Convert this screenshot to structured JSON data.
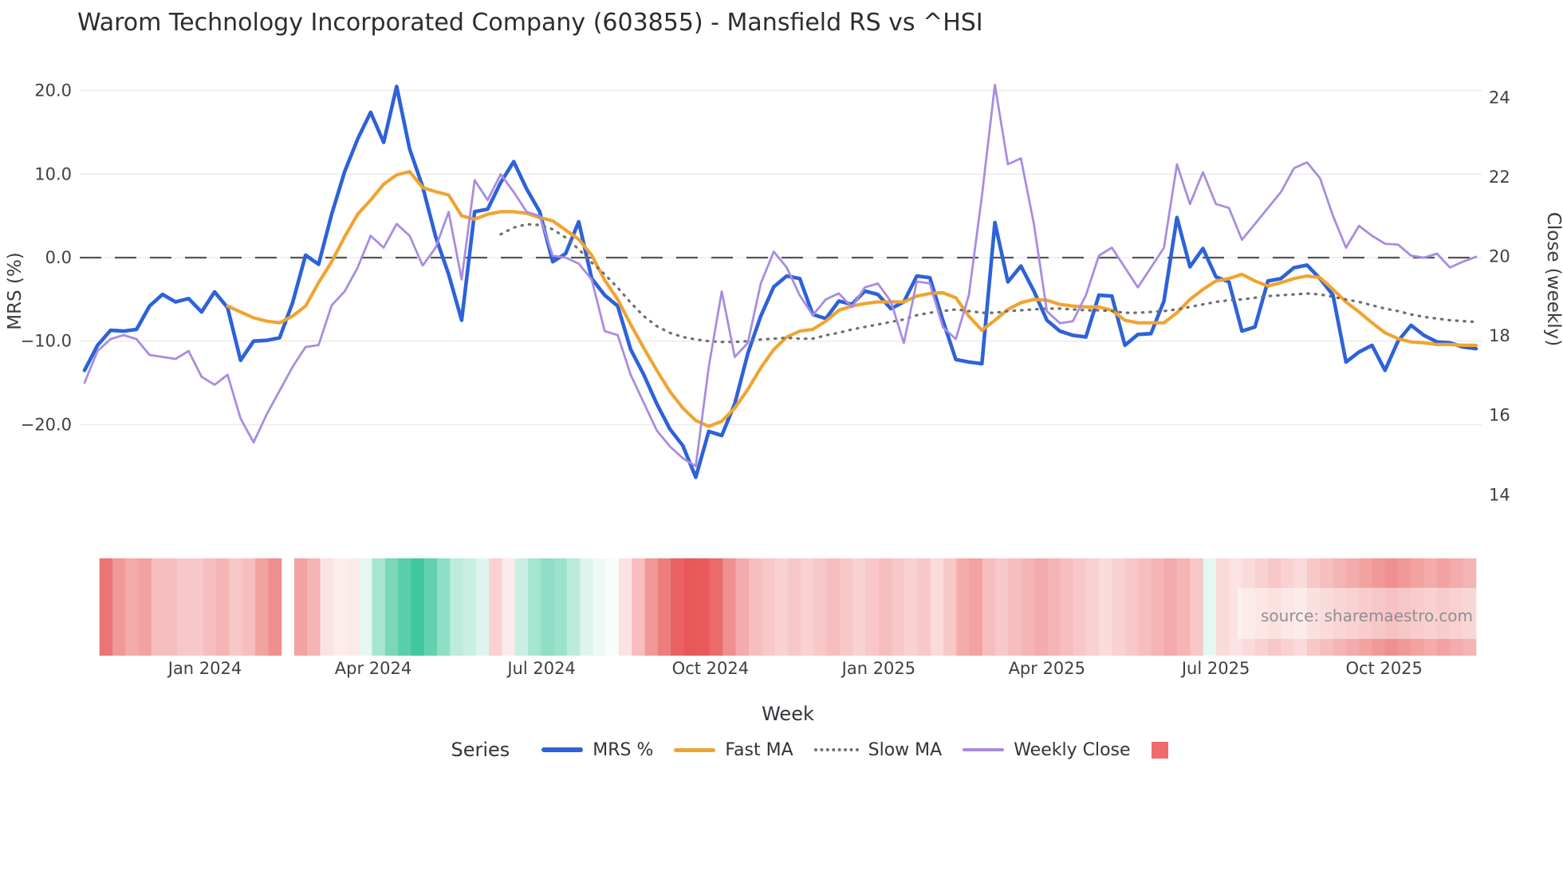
{
  "title": "Warom Technology Incorporated Company (603855) - Mansfield RS vs ^HSI",
  "source_note": "source: sharemaestro.com",
  "axes": {
    "left": {
      "title": "MRS (%)",
      "ticks": [
        20,
        10,
        0,
        -10,
        -20
      ],
      "tick_labels": [
        "20.0",
        "10.0",
        "0.0",
        "−10.0",
        "−20.0"
      ]
    },
    "right": {
      "title": "Close (weekly)",
      "ticks": [
        24,
        22,
        20,
        18,
        16,
        14
      ],
      "tick_labels": [
        "24",
        "22",
        "20",
        "18",
        "16",
        "14"
      ]
    },
    "x": {
      "title": "Week",
      "tick_labels": [
        "Jan 2024",
        "Apr 2024",
        "Jul 2024",
        "Oct 2024",
        "Jan 2025",
        "Apr 2025",
        "Jul 2025",
        "Oct 2025"
      ],
      "tick_weeks": [
        9.26,
        22.2,
        35.14,
        48.13,
        61.07,
        74.0,
        86.99,
        99.93
      ]
    }
  },
  "legend": {
    "title": "Series",
    "items": [
      {
        "label": "MRS %",
        "color": "#2d62d8",
        "style": "solid"
      },
      {
        "label": "Fast MA",
        "color": "#efa431",
        "style": "solid"
      },
      {
        "label": "Slow MA",
        "color": "#6e6e76",
        "style": "dotted"
      },
      {
        "label": "Weekly Close",
        "color": "#a98ce0",
        "style": "solid"
      },
      {
        "label": "",
        "color": "#ed6b6b",
        "style": "square"
      }
    ]
  },
  "chart_data": {
    "type": "line",
    "x_unit": "week_index",
    "n_weeks": 108,
    "zero_line": 0,
    "left_axis_range": [
      -26.5,
      21
    ],
    "right_axis_range": [
      13.8,
      24.4
    ],
    "grid": "horizontal-left-ticks",
    "legend_position": "bottom-center",
    "series": [
      {
        "name": "MRS %",
        "axis": "left",
        "color": "#2d62d8",
        "width": 4.6,
        "dash": null,
        "start_week": 0,
        "values": [
          -13.5,
          -10.5,
          -8.7,
          -8.8,
          -8.6,
          -5.8,
          -4.4,
          -5.3,
          -4.9,
          -6.5,
          -4.1,
          -6.0,
          -12.3,
          -10.0,
          -9.9,
          -9.6,
          -5.4,
          0.3,
          -0.8,
          5.2,
          10.3,
          14.2,
          17.4,
          13.8,
          20.5,
          13.0,
          8.5,
          2.5,
          -2.0,
          -7.5,
          5.5,
          5.8,
          9.0,
          11.5,
          8.2,
          5.5,
          -0.5,
          0.5,
          4.3,
          -2.5,
          -4.5,
          -5.8,
          -11.0,
          -14.0,
          -17.5,
          -20.5,
          -22.5,
          -26.3,
          -20.8,
          -21.3,
          -17.5,
          -11.5,
          -7.0,
          -3.5,
          -2.2,
          -2.5,
          -6.8,
          -7.3,
          -5.2,
          -5.6,
          -4.0,
          -4.4,
          -6.1,
          -5.3,
          -2.2,
          -2.4,
          -7.5,
          -12.2,
          -12.5,
          -12.7,
          4.2,
          -2.9,
          -1.0,
          -4.0,
          -7.5,
          -8.8,
          -9.3,
          -9.5,
          -4.5,
          -4.6,
          -10.5,
          -9.2,
          -9.1,
          -5.2,
          4.8,
          -1.1,
          1.1,
          -2.3,
          -2.9,
          -8.8,
          -8.3,
          -2.8,
          -2.5,
          -1.2,
          -0.9,
          -2.5,
          -4.5,
          -12.5,
          -11.3,
          -10.5,
          -13.5,
          -10.0,
          -8.1,
          -9.3,
          -10.1,
          -10.2,
          -10.7,
          -10.9
        ]
      },
      {
        "name": "Fast MA",
        "axis": "left",
        "color": "#efa431",
        "width": 4.2,
        "dash": null,
        "start_week": 11,
        "values": [
          -5.8,
          -6.5,
          -7.2,
          -7.6,
          -7.8,
          -7.0,
          -5.8,
          -3.0,
          -0.5,
          2.5,
          5.2,
          6.9,
          8.8,
          9.9,
          10.3,
          8.4,
          7.9,
          7.5,
          5.0,
          4.6,
          5.2,
          5.5,
          5.5,
          5.3,
          4.8,
          4.4,
          3.3,
          2.2,
          0.3,
          -2.7,
          -5.0,
          -8.0,
          -10.8,
          -13.5,
          -16.0,
          -18.0,
          -19.5,
          -20.2,
          -19.6,
          -18.0,
          -15.8,
          -13.2,
          -11.0,
          -9.5,
          -8.8,
          -8.6,
          -7.6,
          -6.3,
          -5.8,
          -5.5,
          -5.3,
          -5.3,
          -5.3,
          -4.6,
          -4.3,
          -4.2,
          -4.8,
          -7.0,
          -8.7,
          -7.5,
          -6.2,
          -5.4,
          -5.0,
          -5.1,
          -5.6,
          -5.8,
          -5.9,
          -5.9,
          -6.3,
          -7.5,
          -7.8,
          -7.8,
          -7.8,
          -6.6,
          -5.0,
          -3.8,
          -2.8,
          -2.5,
          -2.0,
          -2.8,
          -3.4,
          -3.0,
          -2.5,
          -2.2,
          -2.4,
          -3.8,
          -5.3,
          -6.5,
          -7.8,
          -9.0,
          -9.7,
          -10.1,
          -10.2,
          -10.4,
          -10.4,
          -10.5,
          -10.5
        ]
      },
      {
        "name": "Slow MA",
        "axis": "left",
        "color": "#6e6e76",
        "width": 3.2,
        "dash": "dotted",
        "start_week": 32,
        "values": [
          2.8,
          3.6,
          4.0,
          3.9,
          3.4,
          2.4,
          1.0,
          -0.6,
          -2.0,
          -3.6,
          -5.4,
          -7.0,
          -8.2,
          -9.0,
          -9.5,
          -9.8,
          -10.0,
          -10.1,
          -10.1,
          -10.0,
          -9.8,
          -9.7,
          -9.6,
          -9.7,
          -9.7,
          -9.3,
          -9.0,
          -8.6,
          -8.3,
          -8.0,
          -7.7,
          -7.4,
          -6.9,
          -6.6,
          -6.4,
          -6.2,
          -6.4,
          -6.6,
          -6.6,
          -6.4,
          -6.3,
          -6.2,
          -6.1,
          -6.1,
          -6.2,
          -6.3,
          -6.3,
          -6.4,
          -6.6,
          -6.6,
          -6.5,
          -6.4,
          -6.2,
          -5.9,
          -5.6,
          -5.3,
          -5.1,
          -5.0,
          -4.8,
          -4.6,
          -4.5,
          -4.4,
          -4.3,
          -4.4,
          -4.7,
          -5.0,
          -5.3,
          -5.7,
          -6.1,
          -6.4,
          -6.8,
          -7.1,
          -7.3,
          -7.5,
          -7.6,
          -7.7
        ]
      },
      {
        "name": "Weekly Close",
        "axis": "right",
        "color": "#a98ce0",
        "width": 2.8,
        "dash": null,
        "start_week": 0,
        "values": [
          16.8,
          17.6,
          17.9,
          18.0,
          17.9,
          17.5,
          17.45,
          17.4,
          17.6,
          16.95,
          16.75,
          17.0,
          15.9,
          15.3,
          16.0,
          16.6,
          17.2,
          17.7,
          17.75,
          18.75,
          19.1,
          19.7,
          20.5,
          20.2,
          20.8,
          20.5,
          19.75,
          20.2,
          21.1,
          19.4,
          21.9,
          21.4,
          22.05,
          21.6,
          21.1,
          21.0,
          20.0,
          19.95,
          19.8,
          19.4,
          18.1,
          18.0,
          17.0,
          16.3,
          15.6,
          15.2,
          14.9,
          14.7,
          17.2,
          19.1,
          17.45,
          17.8,
          19.3,
          20.1,
          19.7,
          19.0,
          18.5,
          18.9,
          19.05,
          18.7,
          19.2,
          19.3,
          18.85,
          17.8,
          19.35,
          19.3,
          18.2,
          17.9,
          19.0,
          21.5,
          24.3,
          22.3,
          22.45,
          20.8,
          18.6,
          18.3,
          18.35,
          19.0,
          20.0,
          20.2,
          19.7,
          19.2,
          19.7,
          20.2,
          22.3,
          21.3,
          22.1,
          21.3,
          21.2,
          20.4,
          20.8,
          21.2,
          21.6,
          22.2,
          22.35,
          21.95,
          21.0,
          20.2,
          20.75,
          20.5,
          20.3,
          20.28,
          20.0,
          19.95,
          20.05,
          19.7,
          19.85,
          19.97
        ]
      }
    ],
    "heatmap": {
      "start_week": 1,
      "cell_weeks": 1,
      "positive_color": "#21bd8b",
      "negative_color": "#e64545",
      "values": [
        -0.75,
        -0.55,
        -0.45,
        -0.5,
        -0.35,
        -0.35,
        -0.3,
        -0.3,
        -0.35,
        -0.4,
        -0.3,
        -0.35,
        -0.5,
        -0.6,
        null,
        -0.5,
        -0.4,
        -0.15,
        -0.1,
        -0.12,
        0.12,
        0.4,
        0.6,
        0.75,
        0.85,
        0.7,
        0.5,
        0.3,
        0.25,
        0.15,
        -0.25,
        -0.12,
        0.25,
        0.4,
        0.5,
        0.45,
        0.3,
        0.15,
        0.08,
        0.03,
        -0.15,
        -0.35,
        -0.55,
        -0.7,
        -0.85,
        -0.9,
        -0.88,
        -0.8,
        -0.6,
        -0.45,
        -0.35,
        -0.3,
        -0.25,
        -0.3,
        -0.25,
        -0.3,
        -0.35,
        -0.3,
        -0.25,
        -0.3,
        -0.35,
        -0.3,
        -0.25,
        -0.3,
        -0.2,
        -0.3,
        -0.45,
        -0.5,
        -0.35,
        -0.3,
        -0.35,
        -0.4,
        -0.45,
        -0.4,
        -0.35,
        -0.3,
        -0.25,
        -0.2,
        -0.25,
        -0.3,
        -0.35,
        -0.4,
        -0.45,
        -0.4,
        -0.3,
        0.12,
        -0.2,
        -0.15,
        -0.2,
        -0.25,
        -0.3,
        -0.25,
        -0.2,
        -0.3,
        -0.35,
        -0.4,
        -0.45,
        -0.5,
        -0.55,
        -0.6,
        -0.55,
        -0.5,
        -0.45,
        -0.5,
        -0.45,
        -0.4
      ]
    }
  }
}
